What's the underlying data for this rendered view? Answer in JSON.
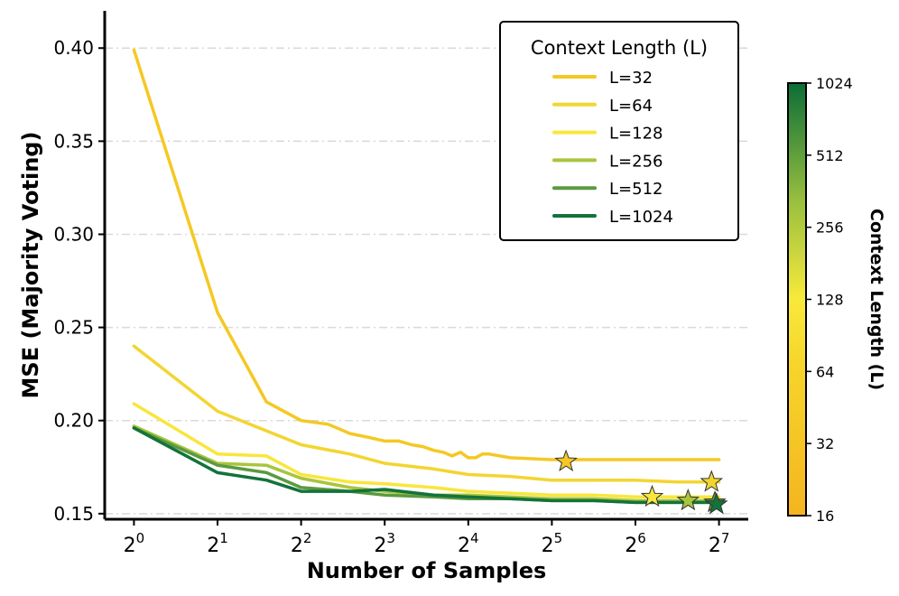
{
  "chart_data": {
    "type": "line",
    "title": "",
    "xlabel": "Number of Samples",
    "ylabel": "MSE (Majority Voting)",
    "x_scale": "log2",
    "xlim_log2": [
      -0.35,
      7.35
    ],
    "ylim": [
      0.147,
      0.42
    ],
    "x_ticks": [
      {
        "exp": 0,
        "base": "2",
        "sup": "0"
      },
      {
        "exp": 1,
        "base": "2",
        "sup": "1"
      },
      {
        "exp": 2,
        "base": "2",
        "sup": "2"
      },
      {
        "exp": 3,
        "base": "2",
        "sup": "3"
      },
      {
        "exp": 4,
        "base": "2",
        "sup": "4"
      },
      {
        "exp": 5,
        "base": "2",
        "sup": "5"
      },
      {
        "exp": 6,
        "base": "2",
        "sup": "6"
      },
      {
        "exp": 7,
        "base": "2",
        "sup": "7"
      }
    ],
    "y_ticks": [
      {
        "value": 0.15,
        "label": "0.15"
      },
      {
        "value": 0.2,
        "label": "0.20"
      },
      {
        "value": 0.25,
        "label": "0.25"
      },
      {
        "value": 0.3,
        "label": "0.30"
      },
      {
        "value": 0.35,
        "label": "0.35"
      },
      {
        "value": 0.4,
        "label": "0.40"
      }
    ],
    "grid": "horizontal dash-dot",
    "legend": {
      "title": "Context Length (L)",
      "placement": "upper-right"
    },
    "series": [
      {
        "name": "L=32",
        "color": "#f5c823",
        "points": [
          [
            0,
            0.399
          ],
          [
            1,
            0.258
          ],
          [
            1.585,
            0.21
          ],
          [
            2,
            0.2
          ],
          [
            2.322,
            0.198
          ],
          [
            2.585,
            0.193
          ],
          [
            2.807,
            0.191
          ],
          [
            3,
            0.189
          ],
          [
            3.17,
            0.189
          ],
          [
            3.322,
            0.187
          ],
          [
            3.459,
            0.186
          ],
          [
            3.585,
            0.184
          ],
          [
            3.7,
            0.183
          ],
          [
            3.807,
            0.181
          ],
          [
            3.907,
            0.183
          ],
          [
            4,
            0.18
          ],
          [
            4.087,
            0.18
          ],
          [
            4.17,
            0.182
          ],
          [
            4.25,
            0.182
          ],
          [
            4.5,
            0.18
          ],
          [
            5,
            0.179
          ],
          [
            5.5,
            0.179
          ],
          [
            6,
            0.179
          ],
          [
            6.5,
            0.179
          ],
          [
            7,
            0.179
          ]
        ],
        "star": [
          5.17,
          0.178
        ]
      },
      {
        "name": "L=64",
        "color": "#f3d531",
        "points": [
          [
            0,
            0.24
          ],
          [
            1,
            0.205
          ],
          [
            2,
            0.187
          ],
          [
            2.585,
            0.182
          ],
          [
            3,
            0.177
          ],
          [
            3.585,
            0.174
          ],
          [
            4,
            0.171
          ],
          [
            4.5,
            0.17
          ],
          [
            5,
            0.168
          ],
          [
            5.5,
            0.168
          ],
          [
            6,
            0.168
          ],
          [
            6.5,
            0.167
          ],
          [
            7,
            0.167
          ]
        ],
        "star": [
          6.91,
          0.167
        ]
      },
      {
        "name": "L=128",
        "color": "#f8e63c",
        "points": [
          [
            0,
            0.209
          ],
          [
            1,
            0.182
          ],
          [
            1.585,
            0.181
          ],
          [
            2,
            0.171
          ],
          [
            2.585,
            0.167
          ],
          [
            3,
            0.166
          ],
          [
            3.585,
            0.164
          ],
          [
            4,
            0.162
          ],
          [
            4.5,
            0.161
          ],
          [
            5,
            0.16
          ],
          [
            5.5,
            0.16
          ],
          [
            6,
            0.159
          ],
          [
            6.5,
            0.159
          ],
          [
            7,
            0.159
          ]
        ],
        "star": [
          6.2,
          0.159
        ]
      },
      {
        "name": "L=256",
        "color": "#a8c53c",
        "points": [
          [
            0,
            0.197
          ],
          [
            1,
            0.177
          ],
          [
            1.585,
            0.176
          ],
          [
            2,
            0.169
          ],
          [
            2.585,
            0.164
          ],
          [
            3,
            0.162
          ],
          [
            3.585,
            0.16
          ],
          [
            4,
            0.16
          ],
          [
            4.5,
            0.159
          ],
          [
            5,
            0.158
          ],
          [
            5.5,
            0.158
          ],
          [
            6,
            0.157
          ],
          [
            6.5,
            0.157
          ],
          [
            7,
            0.157
          ]
        ],
        "star": [
          6.63,
          0.157
        ]
      },
      {
        "name": "L=512",
        "color": "#5b9a40",
        "points": [
          [
            0,
            0.196
          ],
          [
            1,
            0.176
          ],
          [
            1.585,
            0.172
          ],
          [
            2,
            0.164
          ],
          [
            2.585,
            0.162
          ],
          [
            3,
            0.16
          ],
          [
            3.585,
            0.159
          ],
          [
            4,
            0.158
          ],
          [
            4.5,
            0.158
          ],
          [
            5,
            0.157
          ],
          [
            5.5,
            0.157
          ],
          [
            6,
            0.156
          ],
          [
            6.5,
            0.156
          ],
          [
            7,
            0.156
          ]
        ],
        "star": [
          6.95,
          0.156
        ]
      },
      {
        "name": "L=1024",
        "color": "#13733a",
        "points": [
          [
            0,
            0.196
          ],
          [
            1,
            0.172
          ],
          [
            1.585,
            0.168
          ],
          [
            2,
            0.162
          ],
          [
            2.585,
            0.162
          ],
          [
            3,
            0.163
          ],
          [
            3.585,
            0.16
          ],
          [
            4,
            0.159
          ],
          [
            4.5,
            0.158
          ],
          [
            5,
            0.157
          ],
          [
            5.5,
            0.157
          ],
          [
            6,
            0.156
          ],
          [
            6.5,
            0.156
          ],
          [
            7,
            0.156
          ]
        ],
        "star": [
          6.97,
          0.155
        ]
      }
    ],
    "colorbar": {
      "label": "Context Length (L)",
      "scale": "log2",
      "range_log2": [
        4,
        10
      ],
      "ticks": [
        {
          "exp": 4,
          "label": "16"
        },
        {
          "exp": 5,
          "label": "32"
        },
        {
          "exp": 6,
          "label": "64"
        },
        {
          "exp": 7,
          "label": "128"
        },
        {
          "exp": 8,
          "label": "256"
        },
        {
          "exp": 9,
          "label": "512"
        },
        {
          "exp": 10,
          "label": "1024"
        }
      ],
      "stops": [
        {
          "t": 0.0,
          "color": "#f4b51f"
        },
        {
          "t": 0.35,
          "color": "#f6d52c"
        },
        {
          "t": 0.5,
          "color": "#f8e93c"
        },
        {
          "t": 0.72,
          "color": "#9cc13f"
        },
        {
          "t": 1.0,
          "color": "#0b6d37"
        }
      ]
    }
  }
}
